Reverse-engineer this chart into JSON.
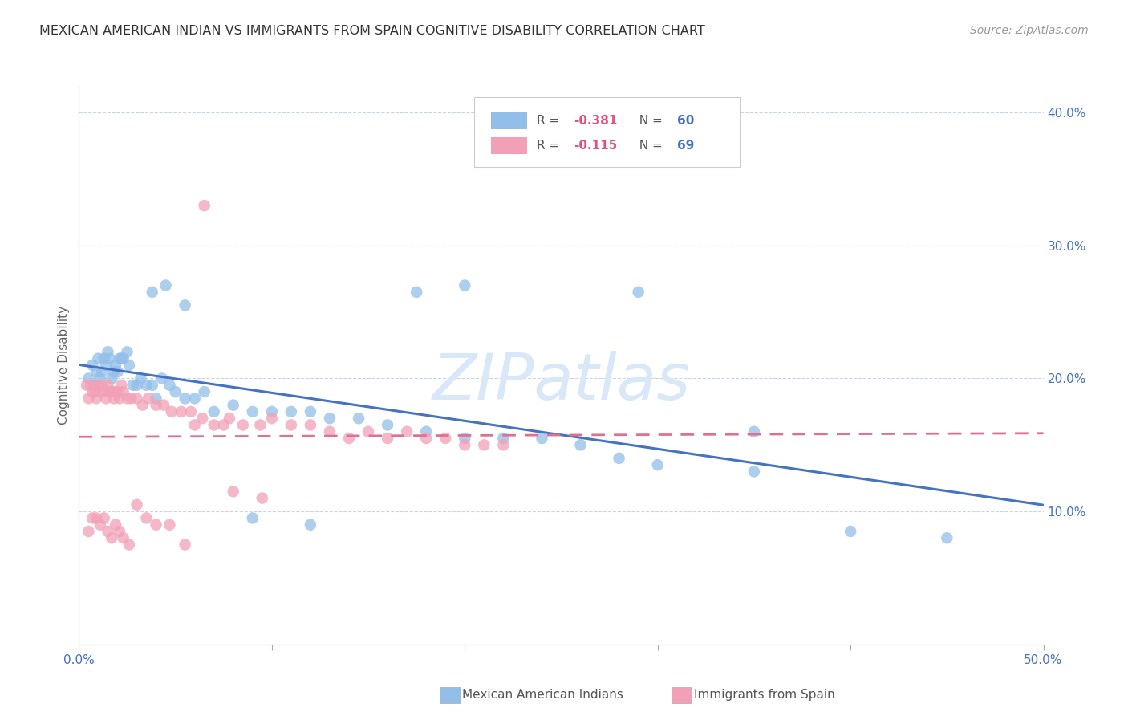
{
  "title": "MEXICAN AMERICAN INDIAN VS IMMIGRANTS FROM SPAIN COGNITIVE DISABILITY CORRELATION CHART",
  "source": "Source: ZipAtlas.com",
  "ylabel": "Cognitive Disability",
  "xlim": [
    0.0,
    0.5
  ],
  "ylim": [
    0.0,
    0.42
  ],
  "yticks_right": [
    0.1,
    0.2,
    0.3,
    0.4
  ],
  "ytick_labels_right": [
    "10.0%",
    "20.0%",
    "30.0%",
    "40.0%"
  ],
  "scatter_color1": "#92BEE8",
  "scatter_color2": "#F2A0B8",
  "line_color1": "#4472C4",
  "line_color2": "#E07090",
  "watermark": "ZIPatlas",
  "watermark_color": "#D8E8F8",
  "axis_color": "#4472C4",
  "grid_color": "#C8D4E8",
  "title_color": "#333333",
  "source_color": "#999999",
  "blue_x": [
    0.005,
    0.007,
    0.008,
    0.009,
    0.01,
    0.011,
    0.012,
    0.013,
    0.014,
    0.015,
    0.016,
    0.017,
    0.018,
    0.019,
    0.02,
    0.021,
    0.022,
    0.023,
    0.025,
    0.026,
    0.028,
    0.03,
    0.032,
    0.035,
    0.038,
    0.04,
    0.043,
    0.047,
    0.05,
    0.055,
    0.06,
    0.065,
    0.07,
    0.08,
    0.09,
    0.1,
    0.11,
    0.12,
    0.13,
    0.145,
    0.16,
    0.18,
    0.2,
    0.22,
    0.24,
    0.26,
    0.28,
    0.3,
    0.35,
    0.4,
    0.038,
    0.045,
    0.055,
    0.175,
    0.29,
    0.35,
    0.45,
    0.09,
    0.12,
    0.2
  ],
  "blue_y": [
    0.2,
    0.21,
    0.195,
    0.205,
    0.215,
    0.2,
    0.205,
    0.215,
    0.21,
    0.22,
    0.215,
    0.2,
    0.205,
    0.21,
    0.205,
    0.215,
    0.215,
    0.215,
    0.22,
    0.21,
    0.195,
    0.195,
    0.2,
    0.195,
    0.195,
    0.185,
    0.2,
    0.195,
    0.19,
    0.185,
    0.185,
    0.19,
    0.175,
    0.18,
    0.175,
    0.175,
    0.175,
    0.175,
    0.17,
    0.17,
    0.165,
    0.16,
    0.155,
    0.155,
    0.155,
    0.15,
    0.14,
    0.135,
    0.13,
    0.085,
    0.265,
    0.27,
    0.255,
    0.265,
    0.265,
    0.16,
    0.08,
    0.095,
    0.09,
    0.27
  ],
  "pink_x": [
    0.004,
    0.005,
    0.006,
    0.007,
    0.008,
    0.009,
    0.01,
    0.011,
    0.012,
    0.013,
    0.014,
    0.015,
    0.016,
    0.017,
    0.018,
    0.019,
    0.02,
    0.021,
    0.022,
    0.023,
    0.025,
    0.027,
    0.03,
    0.033,
    0.036,
    0.04,
    0.044,
    0.048,
    0.053,
    0.058,
    0.064,
    0.07,
    0.078,
    0.085,
    0.094,
    0.1,
    0.11,
    0.12,
    0.13,
    0.14,
    0.15,
    0.16,
    0.17,
    0.18,
    0.19,
    0.2,
    0.21,
    0.22,
    0.06,
    0.075,
    0.005,
    0.007,
    0.009,
    0.011,
    0.013,
    0.015,
    0.017,
    0.019,
    0.021,
    0.023,
    0.026,
    0.03,
    0.035,
    0.04,
    0.047,
    0.055,
    0.065,
    0.08,
    0.095
  ],
  "pink_y": [
    0.195,
    0.185,
    0.195,
    0.19,
    0.19,
    0.185,
    0.195,
    0.19,
    0.195,
    0.19,
    0.185,
    0.195,
    0.19,
    0.19,
    0.185,
    0.19,
    0.19,
    0.185,
    0.195,
    0.19,
    0.185,
    0.185,
    0.185,
    0.18,
    0.185,
    0.18,
    0.18,
    0.175,
    0.175,
    0.175,
    0.17,
    0.165,
    0.17,
    0.165,
    0.165,
    0.17,
    0.165,
    0.165,
    0.16,
    0.155,
    0.16,
    0.155,
    0.16,
    0.155,
    0.155,
    0.15,
    0.15,
    0.15,
    0.165,
    0.165,
    0.085,
    0.095,
    0.095,
    0.09,
    0.095,
    0.085,
    0.08,
    0.09,
    0.085,
    0.08,
    0.075,
    0.105,
    0.095,
    0.09,
    0.09,
    0.075,
    0.33,
    0.115,
    0.11
  ]
}
